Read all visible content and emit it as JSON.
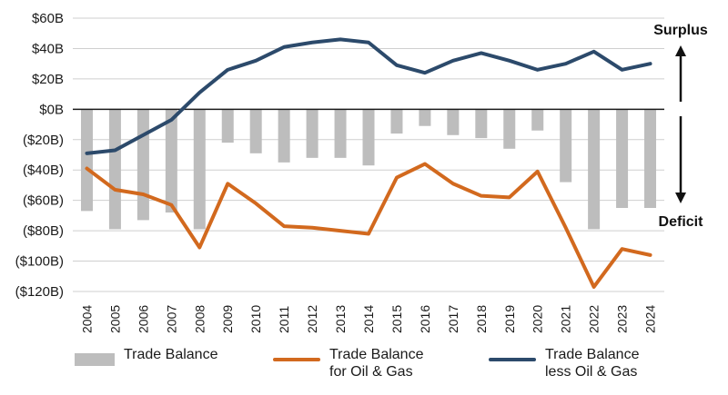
{
  "chart_data": {
    "type": "bar+line",
    "categories": [
      "2004",
      "2005",
      "2006",
      "2007",
      "2008",
      "2009",
      "2010",
      "2011",
      "2012",
      "2013",
      "2014",
      "2015",
      "2016",
      "2017",
      "2018",
      "2019",
      "2020",
      "2021",
      "2022",
      "2023",
      "2024"
    ],
    "series": [
      {
        "name": "Trade Balance",
        "kind": "bar",
        "color": "#bdbdbd",
        "values": [
          -67,
          -79,
          -73,
          -68,
          -79,
          -22,
          -29,
          -35,
          -32,
          -32,
          -37,
          -16,
          -11,
          -17,
          -19,
          -26,
          -14,
          -48,
          -79,
          -65,
          -65
        ]
      },
      {
        "name": "Trade Balance\nfor Oil & Gas",
        "kind": "line",
        "color": "#d2691e",
        "values": [
          -39,
          -53,
          -56,
          -63,
          -91,
          -49,
          -62,
          -77,
          -78,
          -80,
          -82,
          -45,
          -36,
          -49,
          -57,
          -58,
          -41,
          -78,
          -117,
          -92,
          -96
        ]
      },
      {
        "name": "Trade Balance\nless Oil & Gas",
        "kind": "line",
        "color": "#2c4a6b",
        "values": [
          -29,
          -27,
          -17,
          -7,
          11,
          26,
          32,
          41,
          44,
          46,
          44,
          29,
          24,
          32,
          37,
          32,
          26,
          30,
          38,
          26,
          30
        ]
      }
    ],
    "ylim": [
      -120,
      60
    ],
    "yticks": [
      60,
      40,
      20,
      0,
      -20,
      -40,
      -60,
      -80,
      -100,
      -120
    ],
    "ytick_labels": [
      "$60B",
      "$40B",
      "$20B",
      "$0B",
      "($20B)",
      "($40B)",
      "($60B)",
      "($80B)",
      "($100B)",
      "($120B)"
    ],
    "annotations": {
      "surplus": "Surplus",
      "deficit": "Deficit"
    },
    "grid": true,
    "legend_position": "bottom"
  }
}
